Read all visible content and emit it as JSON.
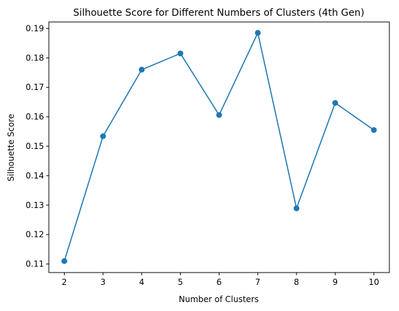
{
  "chart_data": {
    "type": "line",
    "title": "Silhouette Score for Different Numbers of Clusters (4th Gen)",
    "xlabel": "Number of Clusters",
    "ylabel": "Silhouette Score",
    "x": [
      2,
      3,
      4,
      5,
      6,
      7,
      8,
      9,
      10
    ],
    "series": [
      {
        "values": [
          0.111,
          0.1534,
          0.176,
          0.1815,
          0.1606,
          0.1885,
          0.1289,
          0.1647,
          0.1555
        ],
        "color": "#1f77b4",
        "marker": "circle"
      }
    ],
    "xticks": [
      "2",
      "3",
      "4",
      "5",
      "6",
      "7",
      "8",
      "9",
      "10"
    ],
    "yticks": [
      "0.11",
      "0.12",
      "0.13",
      "0.14",
      "0.15",
      "0.16",
      "0.17",
      "0.18",
      "0.19"
    ],
    "xlim": [
      1.6,
      10.4
    ],
    "ylim": [
      0.1071,
      0.1922
    ],
    "grid": false,
    "legend": "none"
  }
}
